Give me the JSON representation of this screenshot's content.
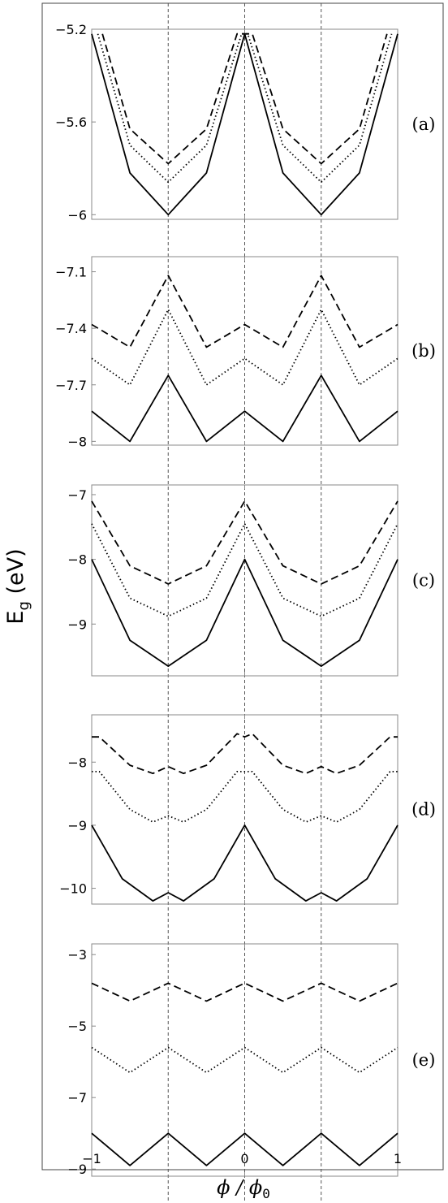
{
  "figure": {
    "ylabel": "E",
    "ylabel_sub": "g",
    "ylabel_unit": " (eV)",
    "xlabel_phi": "ϕ",
    "xlabel_slash": " / ",
    "xlabel_phi0": "ϕ",
    "xlabel_sub": "0",
    "x_tick_labels": [
      "-1",
      "0",
      "1"
    ]
  },
  "chart_data": [
    {
      "type": "line",
      "panel_label": "(a)",
      "xlim": [
        -1,
        1
      ],
      "ylim": [
        -6.02,
        -5.2
      ],
      "yticks": [
        -5.2,
        -5.6,
        -6
      ],
      "ytick_labels": [
        "-5.2",
        "-5.6",
        "-6"
      ],
      "vertical_reference_lines": [
        -0.5,
        0,
        0.5
      ],
      "grid": false,
      "series": [
        {
          "style": "solid",
          "x": [
            -1,
            -0.75,
            -0.5,
            -0.25,
            0,
            0.25,
            0.5,
            0.75,
            1
          ],
          "y": [
            -5.22,
            -5.82,
            -6.0,
            -5.82,
            -5.22,
            -5.82,
            -6.0,
            -5.82,
            -5.22
          ]
        },
        {
          "style": "dotted",
          "x": [
            -0.96,
            -0.75,
            -0.5,
            -0.25,
            -0.02,
            0.02,
            0.25,
            0.5,
            0.75,
            0.96
          ],
          "y": [
            -5.22,
            -5.7,
            -5.86,
            -5.7,
            -5.22,
            -5.22,
            -5.7,
            -5.86,
            -5.7,
            -5.22
          ]
        },
        {
          "style": "dashed",
          "x": [
            -0.93,
            -0.75,
            -0.5,
            -0.25,
            -0.05,
            0.05,
            0.25,
            0.5,
            0.75,
            0.93
          ],
          "y": [
            -5.22,
            -5.63,
            -5.78,
            -5.63,
            -5.22,
            -5.22,
            -5.63,
            -5.78,
            -5.63,
            -5.22
          ]
        }
      ]
    },
    {
      "type": "line",
      "panel_label": "(b)",
      "xlim": [
        -1,
        1
      ],
      "ylim": [
        -8.02,
        -7.02
      ],
      "yticks": [
        -7.1,
        -7.4,
        -7.7,
        -8
      ],
      "ytick_labels": [
        "-7.1",
        "-7.4",
        "-7.7",
        "-8"
      ],
      "vertical_reference_lines": [
        -0.5,
        0,
        0.5
      ],
      "grid": false,
      "series": [
        {
          "style": "solid",
          "x": [
            -1,
            -0.75,
            -0.5,
            -0.25,
            0,
            0.25,
            0.5,
            0.75,
            1
          ],
          "y": [
            -7.84,
            -8.0,
            -7.65,
            -8.0,
            -7.84,
            -8.0,
            -7.65,
            -8.0,
            -7.84
          ]
        },
        {
          "style": "dotted",
          "x": [
            -1,
            -0.75,
            -0.5,
            -0.25,
            0,
            0.25,
            0.5,
            0.75,
            1
          ],
          "y": [
            -7.56,
            -7.7,
            -7.3,
            -7.7,
            -7.56,
            -7.7,
            -7.3,
            -7.7,
            -7.56
          ]
        },
        {
          "style": "dashed",
          "x": [
            -1,
            -0.75,
            -0.5,
            -0.25,
            0,
            0.25,
            0.5,
            0.75,
            1
          ],
          "y": [
            -7.38,
            -7.5,
            -7.12,
            -7.5,
            -7.38,
            -7.5,
            -7.12,
            -7.5,
            -7.38
          ]
        }
      ]
    },
    {
      "type": "line",
      "panel_label": "(c)",
      "xlim": [
        -1,
        1
      ],
      "ylim": [
        -9.8,
        -6.85
      ],
      "yticks": [
        -7,
        -8,
        -9
      ],
      "ytick_labels": [
        "-7",
        "-8",
        "-9"
      ],
      "vertical_reference_lines": [
        -0.5,
        0,
        0.5
      ],
      "grid": false,
      "series": [
        {
          "style": "solid",
          "x": [
            -1,
            -0.75,
            -0.5,
            -0.25,
            0,
            0.25,
            0.5,
            0.75,
            1
          ],
          "y": [
            -8.0,
            -9.25,
            -9.65,
            -9.25,
            -8.0,
            -9.25,
            -9.65,
            -9.25,
            -8.0
          ]
        },
        {
          "style": "dotted",
          "x": [
            -1,
            -0.75,
            -0.5,
            -0.25,
            0,
            0.25,
            0.5,
            0.75,
            1
          ],
          "y": [
            -7.45,
            -8.6,
            -8.88,
            -8.6,
            -7.45,
            -8.6,
            -8.88,
            -8.6,
            -7.45
          ]
        },
        {
          "style": "dashed",
          "x": [
            -1,
            -0.75,
            -0.5,
            -0.25,
            0,
            0.25,
            0.5,
            0.75,
            1
          ],
          "y": [
            -7.1,
            -8.1,
            -8.38,
            -8.1,
            -7.1,
            -8.1,
            -8.38,
            -8.1,
            -7.1
          ]
        }
      ]
    },
    {
      "type": "line",
      "panel_label": "(d)",
      "xlim": [
        -1,
        1
      ],
      "ylim": [
        -10.25,
        -7.25
      ],
      "yticks": [
        -8,
        -9,
        -10
      ],
      "ytick_labels": [
        "-8",
        "-9",
        "-10"
      ],
      "vertical_reference_lines": [
        -0.5,
        0,
        0.5
      ],
      "grid": false,
      "series": [
        {
          "style": "solid",
          "x": [
            -1,
            -0.8,
            -0.6,
            -0.5,
            -0.4,
            -0.2,
            0,
            0.2,
            0.4,
            0.5,
            0.6,
            0.8,
            1
          ],
          "y": [
            -9.0,
            -9.85,
            -10.2,
            -10.07,
            -10.2,
            -9.85,
            -9.0,
            -9.85,
            -10.2,
            -10.07,
            -10.2,
            -9.85,
            -9.0
          ]
        },
        {
          "style": "dotted",
          "x": [
            -1,
            -0.95,
            -0.75,
            -0.6,
            -0.5,
            -0.4,
            -0.25,
            -0.05,
            0,
            0.05,
            0.25,
            0.4,
            0.5,
            0.6,
            0.75,
            0.95,
            1
          ],
          "y": [
            -8.15,
            -8.15,
            -8.75,
            -8.95,
            -8.85,
            -8.95,
            -8.75,
            -8.15,
            -8.15,
            -8.15,
            -8.75,
            -8.95,
            -8.85,
            -8.95,
            -8.75,
            -8.15,
            -8.15
          ]
        },
        {
          "style": "dashed",
          "x": [
            -1,
            -0.95,
            -0.75,
            -0.6,
            -0.5,
            -0.4,
            -0.25,
            -0.05,
            0,
            0.05,
            0.25,
            0.4,
            0.5,
            0.6,
            0.75,
            0.95,
            1
          ],
          "y": [
            -7.6,
            -7.6,
            -8.05,
            -8.18,
            -8.07,
            -8.18,
            -8.05,
            -7.55,
            -7.6,
            -7.55,
            -8.05,
            -8.18,
            -8.07,
            -8.18,
            -8.05,
            -7.6,
            -7.6
          ]
        }
      ]
    },
    {
      "type": "line",
      "panel_label": "(e)",
      "xlim": [
        -1,
        1
      ],
      "ylim": [
        -9.2,
        -2.7
      ],
      "yticks": [
        -3,
        -5,
        -7,
        -9
      ],
      "ytick_labels": [
        "-3",
        "-5",
        "-7",
        "-9"
      ],
      "vertical_reference_lines": [
        -0.5,
        0,
        0.5
      ],
      "grid": false,
      "series": [
        {
          "style": "solid",
          "x": [
            -1,
            -0.75,
            -0.5,
            -0.25,
            0,
            0.25,
            0.5,
            0.75,
            1
          ],
          "y": [
            -8.0,
            -8.9,
            -8.0,
            -8.9,
            -8.0,
            -8.9,
            -8.0,
            -8.9,
            -8.0
          ]
        },
        {
          "style": "dotted",
          "x": [
            -1,
            -0.75,
            -0.5,
            -0.25,
            0,
            0.25,
            0.5,
            0.75,
            1
          ],
          "y": [
            -5.6,
            -6.3,
            -5.6,
            -6.3,
            -5.6,
            -6.3,
            -5.6,
            -6.3,
            -5.6
          ]
        },
        {
          "style": "dashed",
          "x": [
            -1,
            -0.75,
            -0.5,
            -0.25,
            0,
            0.25,
            0.5,
            0.75,
            1
          ],
          "y": [
            -3.8,
            -4.3,
            -3.8,
            -4.3,
            -3.8,
            -4.3,
            -3.8,
            -4.3,
            -3.8
          ]
        }
      ]
    }
  ]
}
